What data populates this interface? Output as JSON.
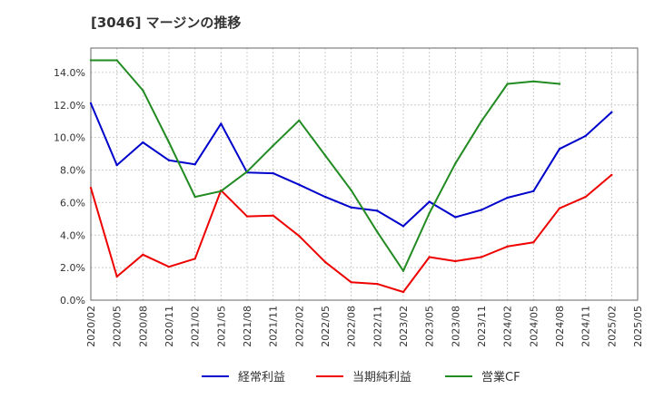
{
  "chart_data": {
    "type": "line",
    "title": "[3046]  マージンの推移",
    "xlabel": "",
    "ylabel": "",
    "categories": [
      "2020/02",
      "2020/05",
      "2020/08",
      "2020/11",
      "2021/02",
      "2021/05",
      "2021/08",
      "2021/11",
      "2022/02",
      "2022/05",
      "2022/08",
      "2022/11",
      "2023/02",
      "2023/05",
      "2023/08",
      "2023/11",
      "2024/02",
      "2024/05",
      "2024/08",
      "2024/11",
      "2025/02",
      "2025/05"
    ],
    "ylim": [
      0,
      15.5
    ],
    "yticks": [
      0,
      2,
      4,
      6,
      8,
      10,
      12,
      14
    ],
    "ytick_labels": [
      "0.0%",
      "2.0%",
      "4.0%",
      "6.0%",
      "8.0%",
      "10.0%",
      "12.0%",
      "14.0%"
    ],
    "grid": true,
    "legend_position": "bottom",
    "series": [
      {
        "name": "経常利益",
        "color": "#0000cc",
        "values": [
          12.1,
          8.3,
          9.7,
          8.6,
          8.35,
          10.85,
          7.85,
          7.8,
          7.1,
          6.35,
          5.7,
          5.5,
          4.55,
          6.05,
          5.1,
          5.55,
          6.3,
          6.7,
          9.3,
          10.1,
          11.55,
          null
        ]
      },
      {
        "name": "当期純利益",
        "color": "#ee0000",
        "values": [
          6.9,
          1.45,
          2.8,
          2.05,
          2.55,
          6.75,
          5.15,
          5.2,
          3.95,
          2.35,
          1.1,
          1.0,
          0.5,
          2.65,
          2.4,
          2.65,
          3.3,
          3.55,
          5.65,
          6.35,
          7.7,
          null
        ]
      },
      {
        "name": "営業CF",
        "color": "#228b22",
        "values": [
          14.75,
          14.75,
          12.9,
          9.7,
          6.35,
          6.7,
          7.9,
          9.5,
          11.05,
          8.9,
          6.75,
          4.2,
          1.8,
          5.35,
          8.4,
          11.0,
          13.3,
          13.45,
          13.3,
          null,
          null,
          null
        ]
      }
    ]
  }
}
